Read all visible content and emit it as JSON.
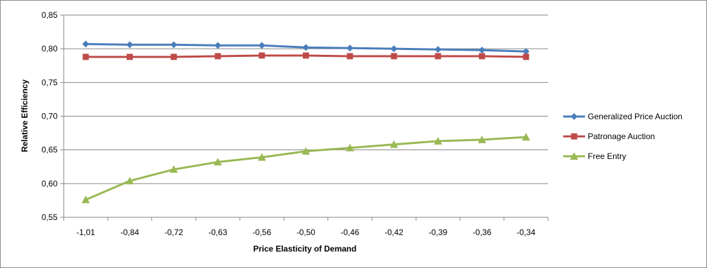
{
  "chart_data": {
    "type": "line",
    "title": "",
    "xlabel": "Price Elasticity  of Demand",
    "ylabel": "Relative Efficiency",
    "categories": [
      "-1,01",
      "-0,84",
      "-0,72",
      "-0,63",
      "-0,56",
      "-0,50",
      "-0,46",
      "-0,42",
      "-0,39",
      "-0,36",
      "-0,34"
    ],
    "yticks": [
      "0,55",
      "0,60",
      "0,65",
      "0,70",
      "0,75",
      "0,80",
      "0,85"
    ],
    "ylim": [
      0.55,
      0.85
    ],
    "grid": true,
    "legend_position": "right",
    "series": [
      {
        "name": "Generalized Price Auction",
        "color": "#4a7ebb",
        "marker": "diamond",
        "values": [
          0.807,
          0.806,
          0.806,
          0.805,
          0.805,
          0.802,
          0.801,
          0.8,
          0.799,
          0.798,
          0.796
        ]
      },
      {
        "name": "Patronage Auction",
        "color": "#be4b48",
        "marker": "square",
        "values": [
          0.788,
          0.788,
          0.788,
          0.789,
          0.79,
          0.79,
          0.789,
          0.789,
          0.789,
          0.789,
          0.788
        ]
      },
      {
        "name": "Free Entry",
        "color": "#98b954",
        "marker": "triangle",
        "values": [
          0.576,
          0.604,
          0.621,
          0.632,
          0.639,
          0.648,
          0.653,
          0.658,
          0.663,
          0.665,
          0.669
        ]
      }
    ]
  }
}
